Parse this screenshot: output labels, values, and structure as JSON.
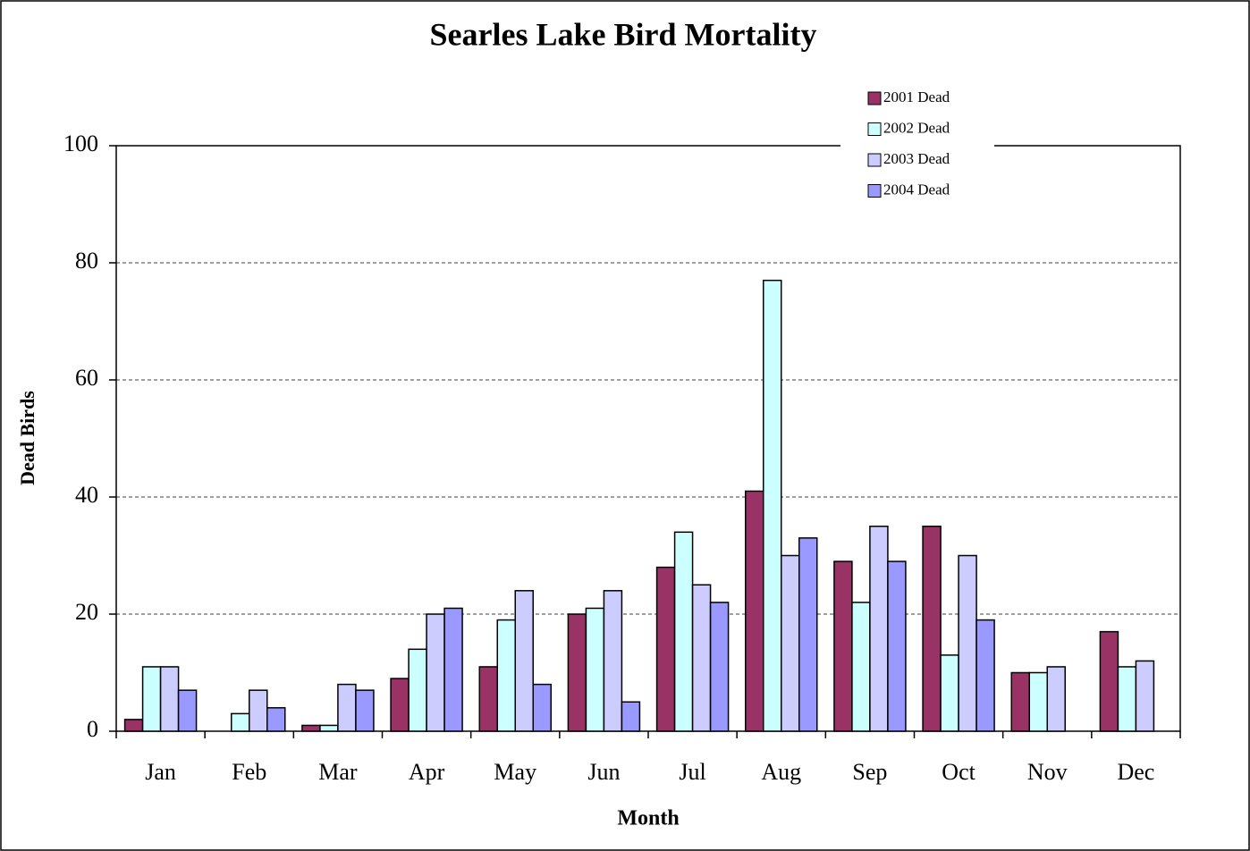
{
  "chart_data": {
    "type": "bar",
    "title": "Searles Lake Bird Mortality",
    "x_label": "Month",
    "y_label": "Dead Birds",
    "categories": [
      "Jan",
      "Feb",
      "Mar",
      "Apr",
      "May",
      "Jun",
      "Jul",
      "Aug",
      "Sep",
      "Oct",
      "Nov",
      "Dec"
    ],
    "series": [
      {
        "name": "2001 Dead",
        "color": "#993366",
        "values": [
          2,
          0,
          1,
          9,
          11,
          20,
          28,
          41,
          29,
          35,
          10,
          17
        ]
      },
      {
        "name": "2002 Dead",
        "color": "#ccffff",
        "values": [
          11,
          3,
          1,
          14,
          19,
          21,
          34,
          77,
          22,
          13,
          10,
          11
        ]
      },
      {
        "name": "2003 Dead",
        "color": "#ccccff",
        "values": [
          11,
          7,
          8,
          20,
          24,
          24,
          25,
          30,
          35,
          30,
          11,
          12
        ]
      },
      {
        "name": "2004 Dead",
        "color": "#9999ff",
        "values": [
          7,
          4,
          7,
          21,
          8,
          5,
          22,
          33,
          29,
          19,
          0,
          0
        ]
      }
    ],
    "ylim": [
      0,
      100
    ],
    "yticks": [
      0,
      20,
      40,
      60,
      80,
      100
    ],
    "grid": true,
    "legend": "top-right"
  }
}
